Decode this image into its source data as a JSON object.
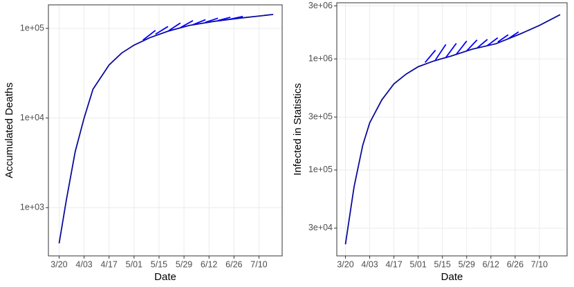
{
  "chart_data": [
    {
      "type": "line",
      "xlabel": "Date",
      "ylabel": "Accumulated Deaths",
      "log_y": true,
      "grid": true,
      "xlim": [
        "3/14",
        "7/23"
      ],
      "xticks": [
        "3/20",
        "4/03",
        "4/17",
        "5/01",
        "5/15",
        "5/29",
        "6/12",
        "6/26",
        "7/10"
      ],
      "ylim": [
        290,
        183000
      ],
      "yticks": [
        {
          "value": 1000,
          "label": "1e+03"
        },
        {
          "value": 10000,
          "label": "1e+04"
        },
        {
          "value": 100000,
          "label": "1e+05"
        }
      ],
      "series": [
        {
          "color": "#0a0a9a",
          "x": [
            "3/20",
            "3/24",
            "3/29",
            "4/03",
            "4/08",
            "4/17",
            "4/24",
            "5/01",
            "5/10",
            "5/20",
            "6/01",
            "6/15",
            "6/29",
            "7/18"
          ],
          "values": [
            400,
            1200,
            4200,
            10000,
            21000,
            39000,
            53000,
            65000,
            79000,
            93000,
            108000,
            120000,
            130000,
            143000
          ]
        },
        {
          "color": "#0000ff",
          "x": [
            "5/06",
            "5/13"
          ],
          "values": [
            74000,
            95000
          ]
        },
        {
          "color": "#0000ff",
          "x": [
            "5/13",
            "5/20"
          ],
          "values": [
            86000,
            105000
          ]
        },
        {
          "color": "#0000ff",
          "x": [
            "5/20",
            "5/27"
          ],
          "values": [
            93000,
            115000
          ]
        },
        {
          "color": "#0000ff",
          "x": [
            "5/27",
            "6/03"
          ],
          "values": [
            102000,
            122000
          ]
        },
        {
          "color": "#0000ff",
          "x": [
            "6/03",
            "6/10"
          ],
          "values": [
            110000,
            125000
          ]
        },
        {
          "color": "#0000ff",
          "x": [
            "6/10",
            "6/17"
          ],
          "values": [
            117000,
            130000
          ]
        },
        {
          "color": "#0000ff",
          "x": [
            "6/17",
            "6/24"
          ],
          "values": [
            122000,
            133000
          ]
        },
        {
          "color": "#0000ff",
          "x": [
            "6/24",
            "7/01"
          ],
          "values": [
            127000,
            136000
          ]
        }
      ]
    },
    {
      "type": "line",
      "xlabel": "Date",
      "ylabel": "Infected in Statistics",
      "log_y": true,
      "grid": true,
      "xlim": [
        "3/15",
        "7/26"
      ],
      "xticks": [
        "3/20",
        "4/03",
        "4/17",
        "5/01",
        "5/15",
        "5/29",
        "6/12",
        "6/26",
        "7/10"
      ],
      "ylim": [
        16900,
        3200000
      ],
      "yticks": [
        {
          "value": 30000,
          "label": "3e+04"
        },
        {
          "value": 100000,
          "label": "1e+05"
        },
        {
          "value": 300000,
          "label": "3e+05"
        },
        {
          "value": 1000000,
          "label": "1e+06"
        },
        {
          "value": 3000000,
          "label": "3e+06"
        }
      ],
      "series": [
        {
          "color": "#0a0a9a",
          "x": [
            "3/20",
            "3/25",
            "3/30",
            "4/03",
            "4/10",
            "4/17",
            "4/24",
            "5/01",
            "5/10",
            "5/20",
            "6/01",
            "6/15",
            "6/29",
            "7/10",
            "7/22"
          ],
          "values": [
            21500,
            70800,
            168000,
            266000,
            428000,
            596000,
            729000,
            850000,
            958000,
            1060000,
            1220000,
            1370000,
            1680000,
            2000000,
            2500000
          ]
        },
        {
          "color": "#0000ff",
          "x": [
            "5/05",
            "5/11"
          ],
          "values": [
            930000,
            1200000
          ]
        },
        {
          "color": "#0000ff",
          "x": [
            "5/11",
            "5/17"
          ],
          "values": [
            980000,
            1350000
          ]
        },
        {
          "color": "#0000ff",
          "x": [
            "5/17",
            "5/23"
          ],
          "values": [
            1030000,
            1380000
          ]
        },
        {
          "color": "#0000ff",
          "x": [
            "5/23",
            "5/29"
          ],
          "values": [
            1100000,
            1450000
          ]
        },
        {
          "color": "#0000ff",
          "x": [
            "5/29",
            "6/04"
          ],
          "values": [
            1180000,
            1480000
          ]
        },
        {
          "color": "#0000ff",
          "x": [
            "6/04",
            "6/10"
          ],
          "values": [
            1250000,
            1500000
          ]
        },
        {
          "color": "#0000ff",
          "x": [
            "6/10",
            "6/16"
          ],
          "values": [
            1320000,
            1550000
          ]
        },
        {
          "color": "#0000ff",
          "x": [
            "6/16",
            "6/22"
          ],
          "values": [
            1420000,
            1650000
          ]
        },
        {
          "color": "#0000ff",
          "x": [
            "6/22",
            "6/28"
          ],
          "values": [
            1520000,
            1750000
          ]
        }
      ]
    }
  ]
}
